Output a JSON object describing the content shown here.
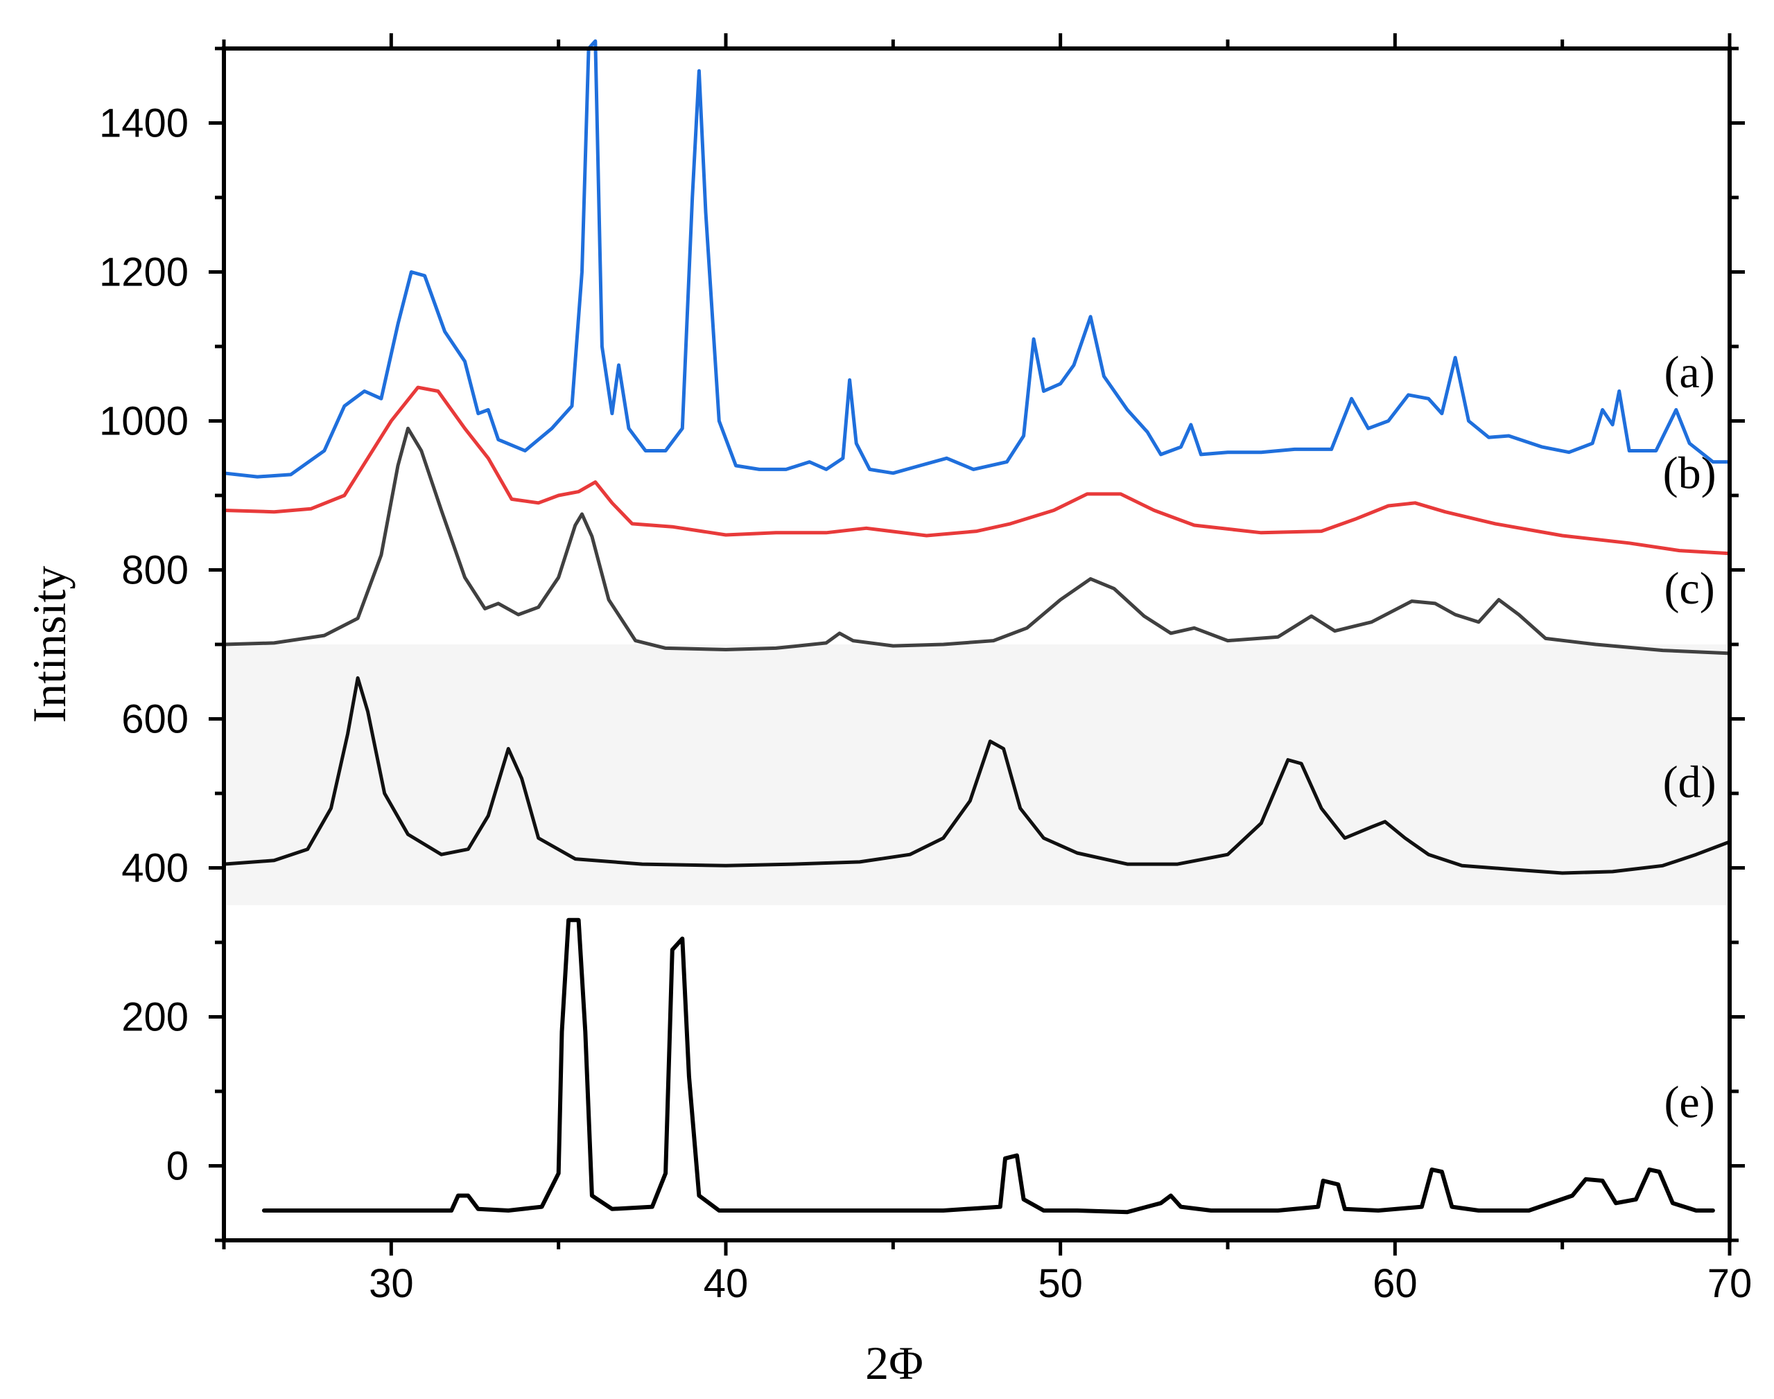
{
  "chart_data": {
    "type": "line",
    "title": "",
    "xlabel": "2Φ",
    "ylabel": "Intinsity",
    "xlim": [
      25,
      70
    ],
    "ylim": [
      -100,
      1500
    ],
    "x_ticks": [
      30,
      40,
      50,
      60,
      70
    ],
    "y_ticks": [
      0,
      200,
      400,
      600,
      800,
      1000,
      1200,
      1400
    ],
    "grid": false,
    "series": [
      {
        "name": "(a)",
        "color": "#1f6fdc",
        "points": [
          [
            25,
            930
          ],
          [
            26,
            925
          ],
          [
            27,
            928
          ],
          [
            28,
            960
          ],
          [
            28.6,
            1020
          ],
          [
            29.2,
            1040
          ],
          [
            29.7,
            1030
          ],
          [
            30.2,
            1130
          ],
          [
            30.6,
            1200
          ],
          [
            31,
            1195
          ],
          [
            31.6,
            1120
          ],
          [
            32.2,
            1080
          ],
          [
            32.6,
            1010
          ],
          [
            32.9,
            1015
          ],
          [
            33.2,
            975
          ],
          [
            34,
            960
          ],
          [
            34.8,
            990
          ],
          [
            35.4,
            1020
          ],
          [
            35.7,
            1200
          ],
          [
            35.9,
            1500
          ],
          [
            36.1,
            1510
          ],
          [
            36.3,
            1100
          ],
          [
            36.6,
            1010
          ],
          [
            36.8,
            1075
          ],
          [
            37.1,
            990
          ],
          [
            37.6,
            960
          ],
          [
            38.2,
            960
          ],
          [
            38.7,
            990
          ],
          [
            39,
            1300
          ],
          [
            39.2,
            1470
          ],
          [
            39.4,
            1280
          ],
          [
            39.8,
            1000
          ],
          [
            40.3,
            940
          ],
          [
            41,
            935
          ],
          [
            41.8,
            935
          ],
          [
            42.5,
            945
          ],
          [
            43,
            935
          ],
          [
            43.5,
            950
          ],
          [
            43.7,
            1055
          ],
          [
            43.9,
            970
          ],
          [
            44.3,
            935
          ],
          [
            45,
            930
          ],
          [
            45.8,
            940
          ],
          [
            46.6,
            950
          ],
          [
            47.4,
            935
          ],
          [
            48.4,
            945
          ],
          [
            48.9,
            980
          ],
          [
            49.2,
            1110
          ],
          [
            49.5,
            1040
          ],
          [
            50,
            1050
          ],
          [
            50.4,
            1075
          ],
          [
            50.9,
            1140
          ],
          [
            51.3,
            1060
          ],
          [
            52,
            1015
          ],
          [
            52.6,
            985
          ],
          [
            53,
            955
          ],
          [
            53.6,
            965
          ],
          [
            53.9,
            995
          ],
          [
            54.2,
            955
          ],
          [
            55,
            958
          ],
          [
            56,
            958
          ],
          [
            57,
            962
          ],
          [
            58.1,
            962
          ],
          [
            58.7,
            1030
          ],
          [
            59.2,
            990
          ],
          [
            59.8,
            1000
          ],
          [
            60.4,
            1035
          ],
          [
            61,
            1030
          ],
          [
            61.4,
            1010
          ],
          [
            61.8,
            1085
          ],
          [
            62.2,
            1000
          ],
          [
            62.8,
            978
          ],
          [
            63.4,
            980
          ],
          [
            64.4,
            965
          ],
          [
            65.2,
            958
          ],
          [
            65.9,
            970
          ],
          [
            66.2,
            1015
          ],
          [
            66.5,
            995
          ],
          [
            66.7,
            1040
          ],
          [
            67,
            960
          ],
          [
            67.8,
            960
          ],
          [
            68.4,
            1015
          ],
          [
            68.8,
            970
          ],
          [
            69.5,
            945
          ],
          [
            70,
            945
          ]
        ]
      },
      {
        "name": "(b)",
        "color": "#e83a3a",
        "points": [
          [
            25,
            880
          ],
          [
            26.5,
            878
          ],
          [
            27.6,
            882
          ],
          [
            28.6,
            900
          ],
          [
            29.3,
            950
          ],
          [
            30,
            1000
          ],
          [
            30.8,
            1045
          ],
          [
            31.4,
            1040
          ],
          [
            32.2,
            990
          ],
          [
            32.9,
            950
          ],
          [
            33.6,
            895
          ],
          [
            34.4,
            890
          ],
          [
            35,
            900
          ],
          [
            35.6,
            905
          ],
          [
            36.1,
            918
          ],
          [
            36.6,
            890
          ],
          [
            37.2,
            862
          ],
          [
            38.4,
            858
          ],
          [
            40,
            847
          ],
          [
            41.5,
            850
          ],
          [
            43,
            850
          ],
          [
            44.2,
            856
          ],
          [
            46,
            846
          ],
          [
            47.5,
            852
          ],
          [
            48.5,
            862
          ],
          [
            49.8,
            880
          ],
          [
            50.8,
            902
          ],
          [
            51.8,
            902
          ],
          [
            52.8,
            880
          ],
          [
            54,
            860
          ],
          [
            56,
            850
          ],
          [
            57.8,
            852
          ],
          [
            58.8,
            868
          ],
          [
            59.8,
            886
          ],
          [
            60.6,
            890
          ],
          [
            61.5,
            878
          ],
          [
            63,
            862
          ],
          [
            65,
            846
          ],
          [
            67,
            836
          ],
          [
            68.5,
            826
          ],
          [
            70,
            822
          ]
        ]
      },
      {
        "name": "(c)",
        "color": "#404040",
        "points": [
          [
            25,
            700
          ],
          [
            26.5,
            702
          ],
          [
            28,
            712
          ],
          [
            29,
            735
          ],
          [
            29.7,
            820
          ],
          [
            30.2,
            940
          ],
          [
            30.5,
            990
          ],
          [
            30.9,
            960
          ],
          [
            31.5,
            880
          ],
          [
            32.2,
            790
          ],
          [
            32.8,
            748
          ],
          [
            33.2,
            755
          ],
          [
            33.8,
            740
          ],
          [
            34.4,
            750
          ],
          [
            35,
            790
          ],
          [
            35.5,
            860
          ],
          [
            35.7,
            875
          ],
          [
            36,
            845
          ],
          [
            36.5,
            760
          ],
          [
            37.3,
            705
          ],
          [
            38.2,
            695
          ],
          [
            40,
            693
          ],
          [
            41.5,
            695
          ],
          [
            43,
            702
          ],
          [
            43.4,
            715
          ],
          [
            43.8,
            705
          ],
          [
            45,
            698
          ],
          [
            46.5,
            700
          ],
          [
            48,
            705
          ],
          [
            49,
            722
          ],
          [
            50,
            760
          ],
          [
            50.9,
            788
          ],
          [
            51.6,
            775
          ],
          [
            52.5,
            738
          ],
          [
            53.3,
            715
          ],
          [
            54,
            722
          ],
          [
            55,
            705
          ],
          [
            56.5,
            710
          ],
          [
            57.5,
            738
          ],
          [
            58.2,
            718
          ],
          [
            59.3,
            730
          ],
          [
            60.5,
            758
          ],
          [
            61.2,
            755
          ],
          [
            61.8,
            740
          ],
          [
            62.5,
            730
          ],
          [
            63.1,
            760
          ],
          [
            63.7,
            740
          ],
          [
            64.5,
            708
          ],
          [
            66,
            700
          ],
          [
            68,
            692
          ],
          [
            70,
            688
          ]
        ]
      },
      {
        "name": "(d)",
        "color": "#111111",
        "points": [
          [
            25,
            405
          ],
          [
            26.5,
            410
          ],
          [
            27.5,
            425
          ],
          [
            28.2,
            480
          ],
          [
            28.7,
            580
          ],
          [
            29,
            655
          ],
          [
            29.3,
            610
          ],
          [
            29.8,
            500
          ],
          [
            30.5,
            445
          ],
          [
            31.5,
            418
          ],
          [
            32.3,
            425
          ],
          [
            32.9,
            470
          ],
          [
            33.5,
            560
          ],
          [
            33.9,
            520
          ],
          [
            34.4,
            440
          ],
          [
            35.5,
            412
          ],
          [
            37.5,
            405
          ],
          [
            40,
            403
          ],
          [
            42,
            405
          ],
          [
            44,
            408
          ],
          [
            45.5,
            418
          ],
          [
            46.5,
            440
          ],
          [
            47.3,
            490
          ],
          [
            47.9,
            570
          ],
          [
            48.3,
            560
          ],
          [
            48.8,
            480
          ],
          [
            49.5,
            440
          ],
          [
            50.5,
            420
          ],
          [
            52,
            405
          ],
          [
            53.5,
            405
          ],
          [
            55,
            418
          ],
          [
            56,
            460
          ],
          [
            56.8,
            545
          ],
          [
            57.2,
            540
          ],
          [
            57.8,
            480
          ],
          [
            58.5,
            440
          ],
          [
            59.3,
            455
          ],
          [
            59.7,
            462
          ],
          [
            60.3,
            440
          ],
          [
            61,
            418
          ],
          [
            62,
            403
          ],
          [
            63.5,
            398
          ],
          [
            65,
            393
          ],
          [
            66.5,
            395
          ],
          [
            68,
            403
          ],
          [
            69,
            418
          ],
          [
            70,
            435
          ]
        ]
      },
      {
        "name": "(e)",
        "color": "#000000",
        "points": [
          [
            26.2,
            -60
          ],
          [
            28,
            -60
          ],
          [
            30,
            -60
          ],
          [
            31.8,
            -60
          ],
          [
            32,
            -40
          ],
          [
            32.3,
            -40
          ],
          [
            32.6,
            -58
          ],
          [
            33.5,
            -60
          ],
          [
            34.5,
            -55
          ],
          [
            35,
            -10
          ],
          [
            35.1,
            180
          ],
          [
            35.3,
            330
          ],
          [
            35.6,
            330
          ],
          [
            35.8,
            180
          ],
          [
            36,
            -40
          ],
          [
            36.6,
            -58
          ],
          [
            37.8,
            -55
          ],
          [
            38.2,
            -10
          ],
          [
            38.4,
            290
          ],
          [
            38.7,
            305
          ],
          [
            38.9,
            120
          ],
          [
            39.2,
            -40
          ],
          [
            39.8,
            -60
          ],
          [
            42,
            -60
          ],
          [
            44,
            -60
          ],
          [
            46.5,
            -60
          ],
          [
            48.2,
            -55
          ],
          [
            48.35,
            10
          ],
          [
            48.7,
            14
          ],
          [
            48.9,
            -45
          ],
          [
            49.5,
            -60
          ],
          [
            50.5,
            -60
          ],
          [
            52,
            -62
          ],
          [
            53,
            -50
          ],
          [
            53.3,
            -40
          ],
          [
            53.6,
            -55
          ],
          [
            54.5,
            -60
          ],
          [
            56.5,
            -60
          ],
          [
            57.7,
            -55
          ],
          [
            57.85,
            -20
          ],
          [
            58.3,
            -25
          ],
          [
            58.5,
            -58
          ],
          [
            59.5,
            -60
          ],
          [
            60.8,
            -55
          ],
          [
            61.1,
            -5
          ],
          [
            61.4,
            -8
          ],
          [
            61.7,
            -55
          ],
          [
            62.5,
            -60
          ],
          [
            64,
            -60
          ],
          [
            65.3,
            -40
          ],
          [
            65.7,
            -18
          ],
          [
            66.2,
            -20
          ],
          [
            66.6,
            -50
          ],
          [
            67.2,
            -45
          ],
          [
            67.6,
            -5
          ],
          [
            67.9,
            -8
          ],
          [
            68.3,
            -50
          ],
          [
            69,
            -60
          ],
          [
            69.5,
            -60
          ]
        ]
      }
    ],
    "labels": [
      {
        "text": "(a)",
        "x": 68.8,
        "y": 1045
      },
      {
        "text": "(b)",
        "x": 68.8,
        "y": 910
      },
      {
        "text": "(c)",
        "x": 68.8,
        "y": 755
      },
      {
        "text": "(d)",
        "x": 68.8,
        "y": 495
      },
      {
        "text": "(e)",
        "x": 68.8,
        "y": 65
      }
    ]
  }
}
